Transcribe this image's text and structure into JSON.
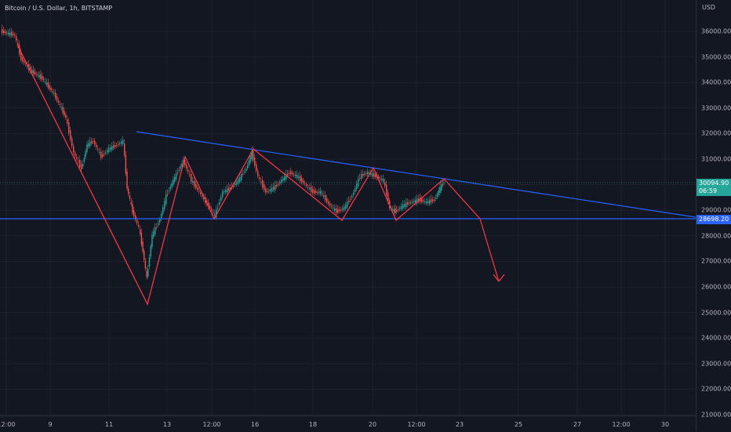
{
  "header": {
    "symbol_title": "Bitcoin / U.S. Dollar, 1h, BITSTAMP"
  },
  "price_axis": {
    "currency": "USD",
    "ticks": [
      "36000.00",
      "35000.00",
      "34000.00",
      "33000.00",
      "32000.00",
      "31000.00",
      "30000.00",
      "29000.00",
      "28000.00",
      "27000.00",
      "26000.00",
      "25000.00",
      "24000.00",
      "23000.00",
      "22000.00",
      "21000.00"
    ],
    "last_price": "30094.90",
    "countdown": "06:59",
    "line_price": "28698.20"
  },
  "time_axis": {
    "labels": [
      "12:00",
      "9",
      "11",
      "13",
      "12:00",
      "16",
      "18",
      "20",
      "12:00",
      "23",
      "25",
      "27",
      "12:00",
      "30"
    ]
  },
  "colors": {
    "up": "#26a69a",
    "down": "#ef5350",
    "trendline": "#2962ff",
    "pattern": "#f23645",
    "background": "#131722",
    "grid": "#1e222d"
  }
}
